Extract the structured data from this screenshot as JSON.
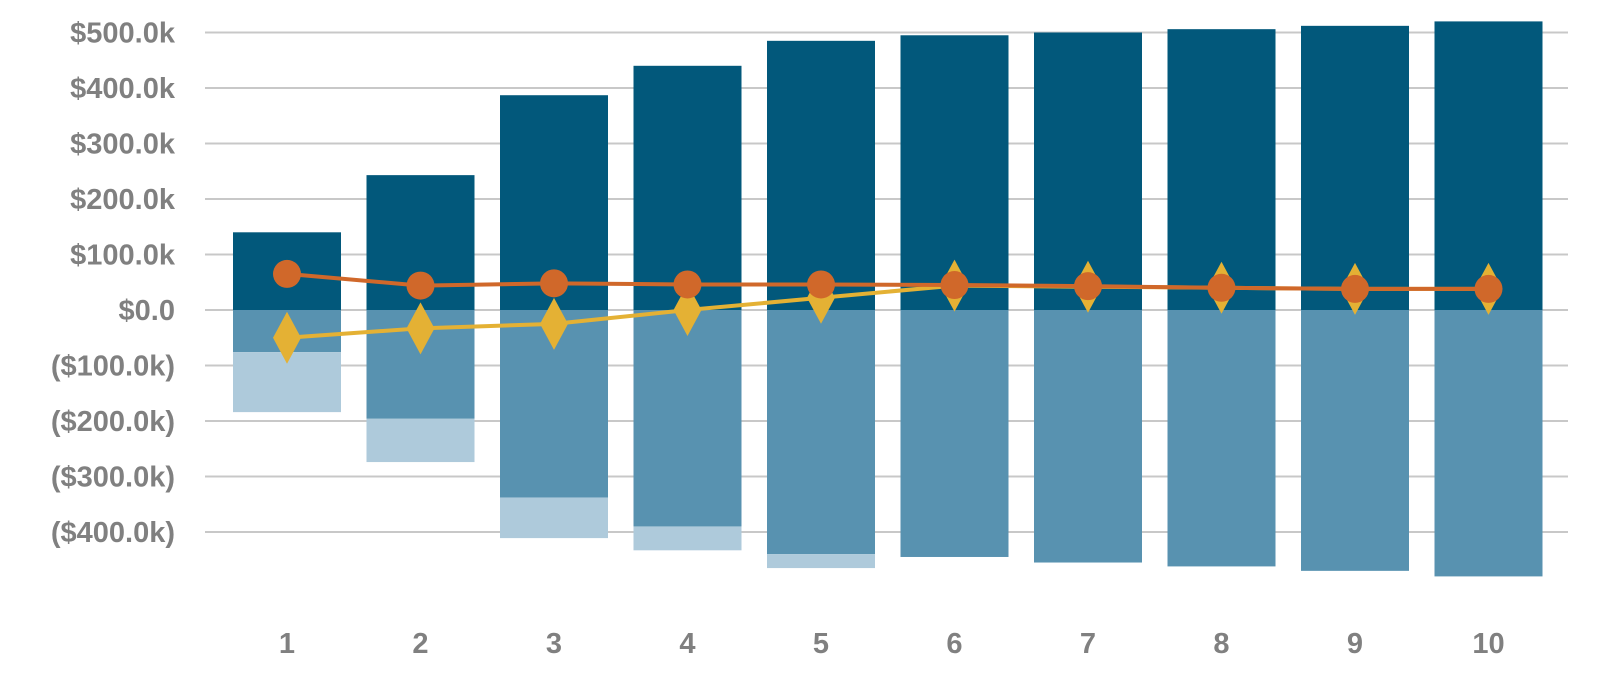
{
  "chart_data": {
    "type": "bar",
    "categories": [
      "1",
      "2",
      "3",
      "4",
      "5",
      "6",
      "7",
      "8",
      "9",
      "10"
    ],
    "y_tick_labels": [
      "$500.0k",
      "$400.0k",
      "$300.0k",
      "$200.0k",
      "$100.0k",
      "$0.0",
      "($100.0k)",
      "($200.0k)",
      "($300.0k)",
      "($400.0k)"
    ],
    "y_ticks": [
      500000,
      400000,
      300000,
      200000,
      100000,
      0,
      -100000,
      -200000,
      -300000,
      -400000
    ],
    "ylim": [
      -480000,
      520000
    ],
    "grid": true,
    "stacked": true,
    "bar_series": [
      {
        "values": [
          140000,
          243000,
          387000,
          440000,
          485000,
          495000,
          500000,
          506000,
          512000,
          520000
        ]
      },
      {
        "values": [
          -76000,
          -196000,
          -338000,
          -390000,
          -440000,
          -445000,
          -455000,
          -462000,
          -470000,
          -480000
        ]
      },
      {
        "values": [
          -108000,
          -78000,
          -73000,
          -43000,
          -25000,
          0,
          0,
          0,
          0,
          0
        ]
      }
    ],
    "line_series": [
      {
        "marker": "circle",
        "values": [
          65000,
          44000,
          48000,
          46000,
          46000,
          45000,
          43000,
          40000,
          38000,
          38000
        ]
      },
      {
        "marker": "diamond",
        "values": [
          -50000,
          -33000,
          -25000,
          0,
          22000,
          44000,
          42000,
          40000,
          38000,
          38000
        ]
      }
    ],
    "colors": {
      "bar_top": "#02587b",
      "bar_mid": "#5892b0",
      "bar_low": "#aecadb",
      "line_circle": "#d0682a",
      "line_diamond": "#e4b134",
      "grid": "#c8c8c8",
      "tick_text": "#808080"
    }
  }
}
